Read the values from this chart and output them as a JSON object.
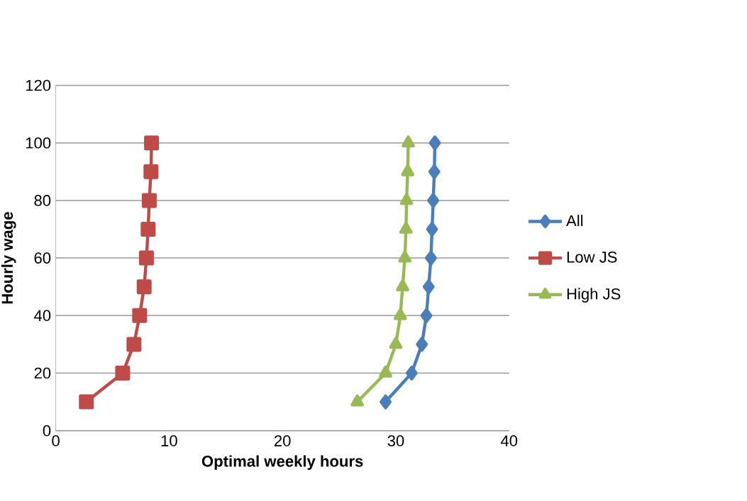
{
  "chart_data": {
    "type": "line",
    "xlabel": "Optimal weekly hours",
    "ylabel": "Hourly wage",
    "xlim": [
      0,
      40
    ],
    "xticks": [
      0,
      10,
      20,
      30,
      40
    ],
    "ylim": [
      0,
      120
    ],
    "yticks": [
      0,
      20,
      40,
      60,
      80,
      100,
      120
    ],
    "grid": "y",
    "legend": "right",
    "series": [
      {
        "name": "All",
        "color": "#4a7ebb",
        "marker": "diamond",
        "x": [
          29.1,
          31.4,
          32.3,
          32.7,
          32.9,
          33.1,
          33.2,
          33.3,
          33.4,
          33.45
        ],
        "values": [
          10,
          20,
          30,
          40,
          50,
          60,
          70,
          80,
          90,
          100
        ]
      },
      {
        "name": "Low JS",
        "color": "#be4b48",
        "marker": "square",
        "x": [
          2.7,
          5.9,
          6.9,
          7.4,
          7.8,
          8.0,
          8.15,
          8.25,
          8.4,
          8.45
        ],
        "values": [
          10,
          20,
          30,
          40,
          50,
          60,
          70,
          80,
          90,
          100
        ]
      },
      {
        "name": "High JS",
        "color": "#98b954",
        "marker": "triangle",
        "x": [
          26.6,
          29.1,
          30.0,
          30.4,
          30.6,
          30.8,
          30.9,
          30.95,
          31.05,
          31.1
        ],
        "values": [
          10,
          20,
          30,
          40,
          50,
          60,
          70,
          80,
          90,
          100
        ]
      }
    ]
  }
}
